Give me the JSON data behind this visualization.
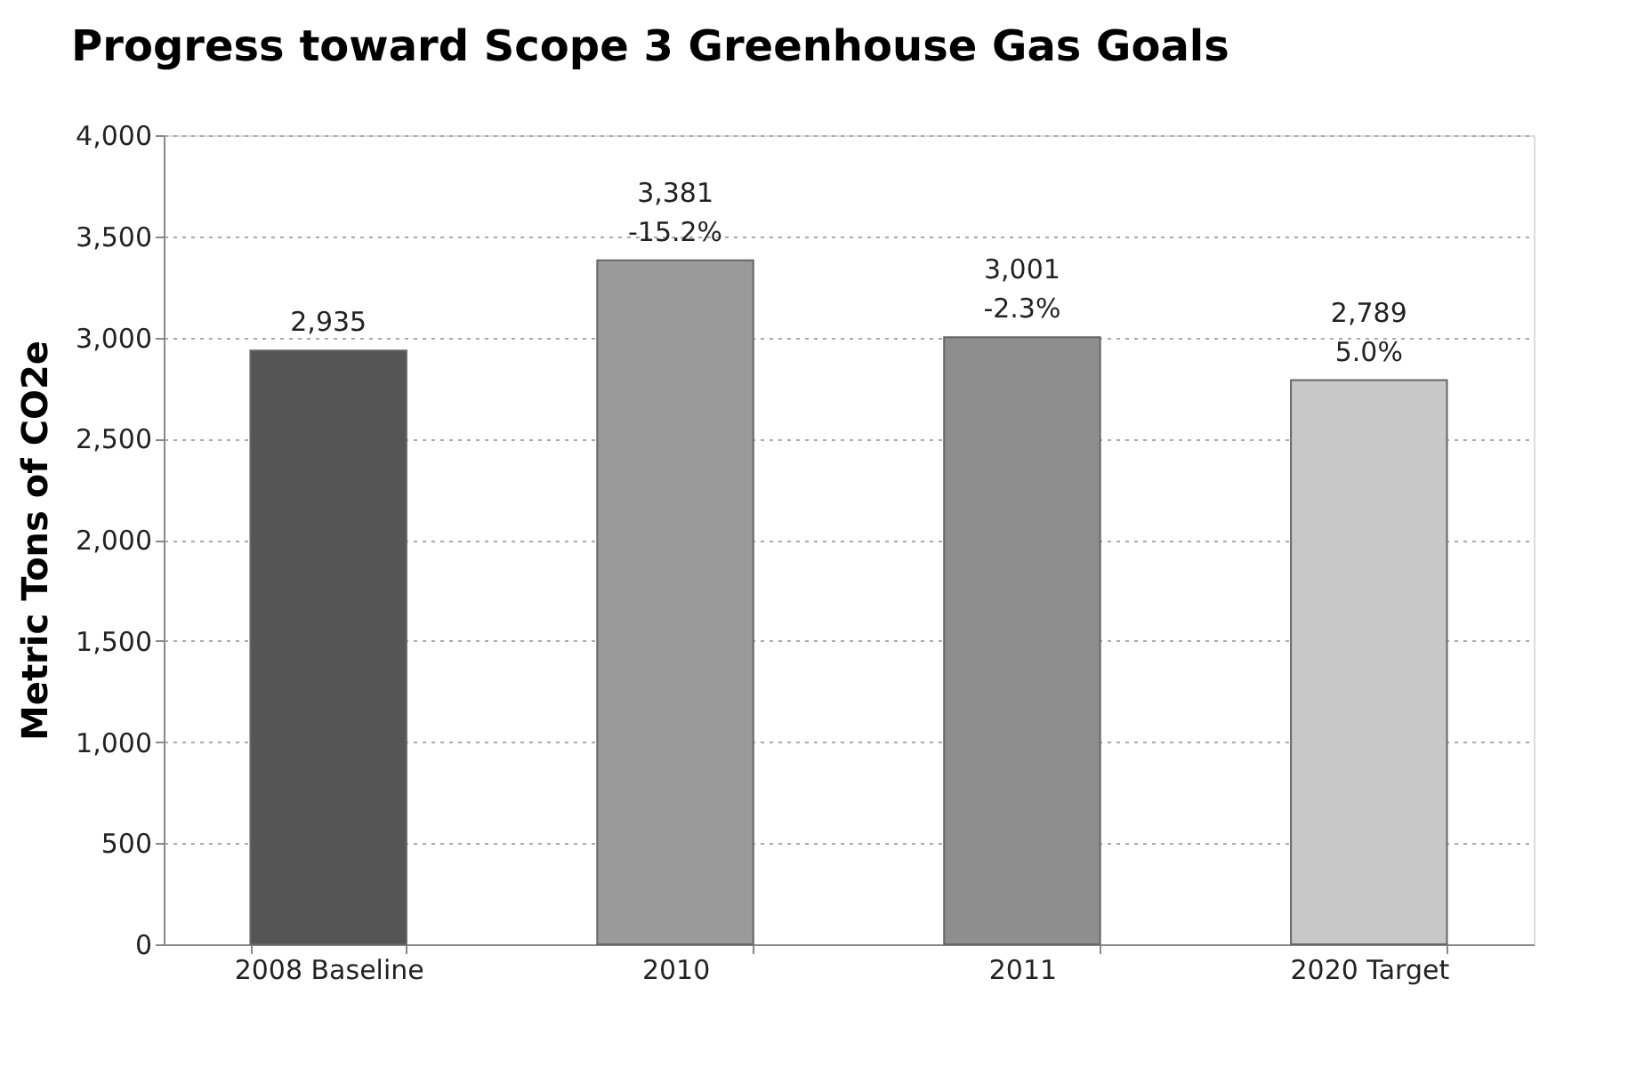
{
  "chart_data": {
    "type": "bar",
    "title": "Progress toward Scope 3 Greenhouse Gas Goals",
    "ylabel": "Metric Tons of CO2e",
    "categories": [
      "2008 Baseline",
      "2010",
      "2011",
      "2020 Target"
    ],
    "values": [
      2935,
      3381,
      3001,
      2789
    ],
    "colors": [
      "#555555",
      "#9a9a9a",
      "#8e8e8e",
      "#c8c8c8"
    ],
    "value_labels": [
      "2,935",
      "3,381\n-15.2%",
      "3,001\n-2.3%",
      "2,789\n5.0%"
    ],
    "ylim": [
      0,
      4000
    ],
    "yticks": [
      0,
      500,
      {
        "value": 1000,
        "label": "1,000"
      },
      {
        "value": 1500,
        "label": "1,500"
      },
      {
        "value": 2000,
        "label": "2,000"
      },
      {
        "value": 2500,
        "label": "2,500"
      },
      {
        "value": 3000,
        "label": "3,000"
      },
      {
        "value": 3500,
        "label": "3,500"
      },
      {
        "value": 4000,
        "label": "4,000"
      }
    ],
    "grid": "y"
  }
}
